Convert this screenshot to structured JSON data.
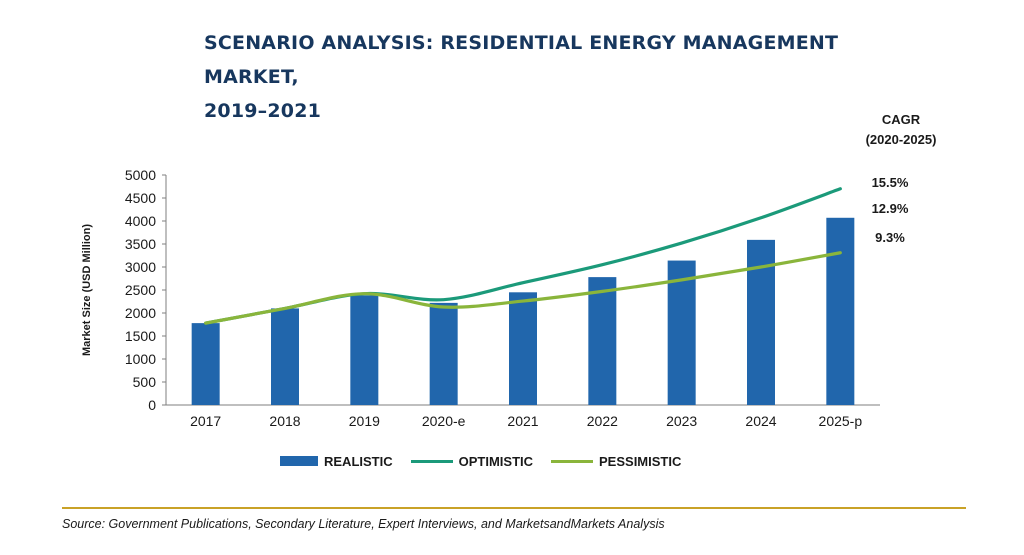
{
  "title_line1": "SCENARIO ANALYSIS: RESIDENTIAL ENERGY MANAGEMENT MARKET,",
  "title_line2": "2019–2021",
  "cagr_header_line1": "CAGR",
  "cagr_header_line2": "(2020-2025)",
  "source": "Source: Government Publications, Secondary Literature, Expert Interviews, and MarketsandMarkets Analysis",
  "colors": {
    "title": "#17375e",
    "realistic": "#2166ac",
    "optimistic": "#1b9a7a",
    "pessimistic": "#8ab53b",
    "rule": "#c9a227"
  },
  "chart_data": {
    "type": "bar",
    "title": "SCENARIO ANALYSIS: RESIDENTIAL ENERGY MANAGEMENT MARKET, 2019–2021",
    "xlabel": "",
    "ylabel": "Market Size (USD Million)",
    "ylim": [
      0,
      5000
    ],
    "yticks": [
      0,
      500,
      1000,
      1500,
      2000,
      2500,
      3000,
      3500,
      4000,
      4500,
      5000
    ],
    "categories": [
      "2017",
      "2018",
      "2019",
      "2020-e",
      "2021",
      "2022",
      "2023",
      "2024",
      "2025-p"
    ],
    "grid": false,
    "legend_position": "bottom",
    "series": [
      {
        "name": "REALISTIC",
        "kind": "bar",
        "values": [
          1780,
          2100,
          2380,
          2220,
          2450,
          2780,
          3140,
          3590,
          4070
        ],
        "cagr": "12.9%"
      },
      {
        "name": "OPTIMISTIC",
        "kind": "line",
        "values": [
          1780,
          2100,
          2420,
          2290,
          2660,
          3050,
          3520,
          4070,
          4700
        ],
        "cagr": "15.5%"
      },
      {
        "name": "PESSIMISTIC",
        "kind": "line",
        "values": [
          1780,
          2100,
          2420,
          2130,
          2260,
          2470,
          2720,
          3000,
          3310
        ],
        "cagr": "9.3%"
      }
    ]
  }
}
